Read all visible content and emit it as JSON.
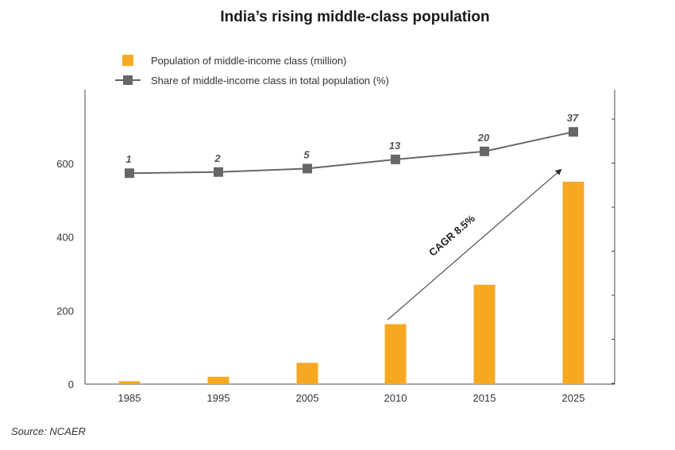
{
  "chart_data": {
    "type": "bar",
    "title": "India’s rising middle-class population",
    "categories": [
      "1985",
      "1995",
      "2005",
      "2010",
      "2015",
      "2025"
    ],
    "series": [
      {
        "name": "Population of middle-income class (million)",
        "type": "bar",
        "axis": "left",
        "color": "#F7A823",
        "values": [
          8,
          20,
          58,
          163,
          270,
          550
        ]
      },
      {
        "name": "Share of middle-income class in total population (%)",
        "type": "line",
        "axis": "right",
        "color": "#666666",
        "values": [
          1,
          2,
          5,
          13,
          20,
          37
        ]
      }
    ],
    "y_ticks": [
      "0",
      "200",
      "400",
      "600"
    ],
    "ylim": [
      0,
      800
    ],
    "annotation": "CAGR 8.5%",
    "legend_position": "top-left",
    "grid": false
  },
  "source": "Source: NCAER"
}
